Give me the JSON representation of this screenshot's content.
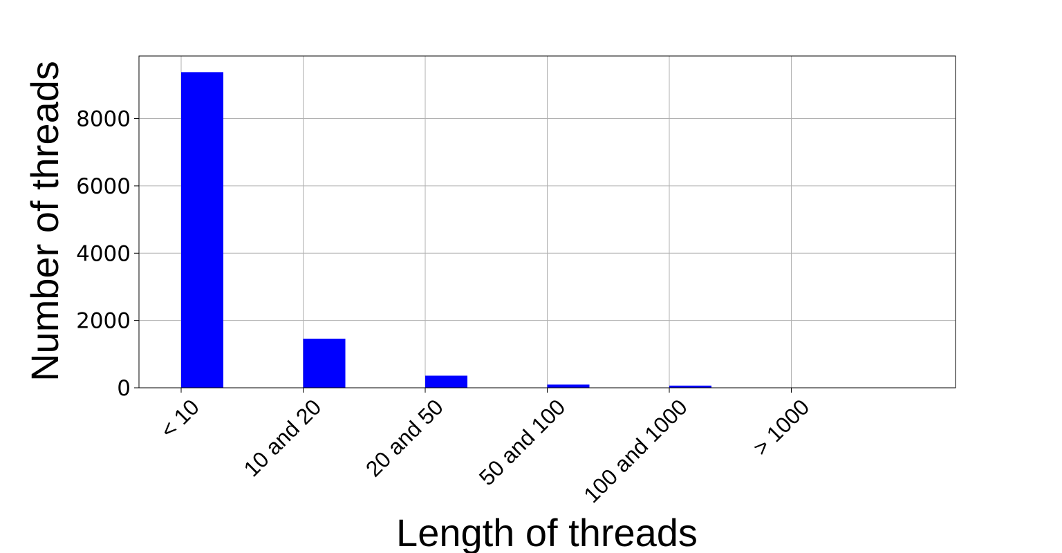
{
  "chart_data": {
    "type": "bar",
    "title": "",
    "xlabel": "Length of threads",
    "ylabel": "Number of threads",
    "categories": [
      "< 10",
      "10 and 20",
      "20 and 50",
      "50 and 100",
      "100 and 1000",
      "> 1000"
    ],
    "values": [
      9380,
      1460,
      360,
      95,
      65,
      5
    ],
    "ylim": [
      0,
      9860
    ],
    "yticks": [
      "0",
      "2000",
      "4000",
      "6000",
      "8000"
    ],
    "grid": true,
    "legend": "none",
    "bar_color": "#0000ff",
    "grid_color": "#b0b0b0"
  }
}
